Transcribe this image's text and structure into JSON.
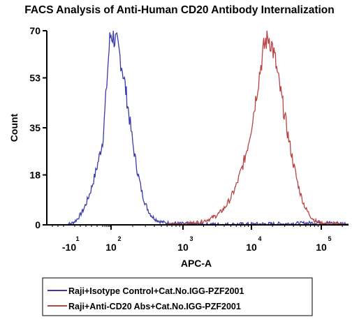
{
  "chart_data": {
    "type": "line",
    "title": "FACS Analysis of Anti-Human CD20 Antibody Internalization",
    "xlabel": "APC-A",
    "ylabel": "Count",
    "x_scale": "biexponential",
    "ylim": [
      0,
      70
    ],
    "y_ticks": [
      "0",
      "18",
      "35",
      "53",
      "70"
    ],
    "x_ticks": [
      {
        "base": "-10",
        "exp": "1",
        "value": -10
      },
      {
        "base": "10",
        "exp": "2",
        "value": 100
      },
      {
        "base": "10",
        "exp": "3",
        "value": 1000
      },
      {
        "base": "10",
        "exp": "4",
        "value": 10000
      },
      {
        "base": "10",
        "exp": "5",
        "value": 100000
      }
    ],
    "legend_position": "bottom",
    "series": [
      {
        "name": "Raji+Isotype Control+Cat.No.IGG-PZF2001",
        "color": "#3a3aa8",
        "x": [
          -18,
          -12,
          -5,
          0,
          5,
          10,
          15,
          20,
          25,
          30,
          35,
          40,
          45,
          50,
          55,
          60,
          65,
          70,
          75,
          80,
          85,
          90,
          95,
          100,
          105,
          110,
          115,
          120,
          130,
          140,
          150,
          160,
          170,
          180,
          190,
          200,
          215,
          230,
          250,
          270,
          300,
          340,
          380,
          430,
          480,
          550,
          650,
          800,
          1000,
          1300,
          2000,
          4000,
          10000,
          30000,
          100000,
          300000
        ],
        "y": [
          0,
          0.2,
          0.6,
          1.2,
          2.2,
          3.6,
          5.3,
          7.5,
          10.2,
          13.3,
          17,
          21,
          25.6,
          30.3,
          35.2,
          40.5,
          45.5,
          50.8,
          55.3,
          59.5,
          63.5,
          66.3,
          68.2,
          68.8,
          68.3,
          67.5,
          66.3,
          65,
          62,
          58,
          53.5,
          48.5,
          43.5,
          38.5,
          34,
          29.5,
          24.5,
          20,
          15.5,
          11.5,
          7.5,
          4.5,
          2.8,
          1.8,
          1.2,
          0.8,
          0.6,
          0.5,
          0.4,
          0.3,
          0.2,
          0.2,
          0.3,
          0.4,
          0.8,
          0.3
        ]
      },
      {
        "name": "Raji+Anti-CD20 Abs+Cat.No.IGG-PZF2001",
        "color": "#b84444",
        "x": [
          600,
          800,
          1000,
          1300,
          1700,
          2000,
          2500,
          3000,
          3500,
          4000,
          4500,
          5000,
          5500,
          6000,
          6500,
          7000,
          7500,
          8000,
          9000,
          10000,
          11000,
          12000,
          13000,
          14000,
          15000,
          16000,
          17000,
          18000,
          19000,
          20000,
          22000,
          24000,
          27000,
          30000,
          35000,
          40000,
          45000,
          50000,
          55000,
          60000,
          70000,
          80000,
          100000,
          150000,
          300000
        ],
        "y": [
          0,
          0.1,
          0.3,
          0.6,
          1,
          1.4,
          2.2,
          3.2,
          4.5,
          6,
          7.8,
          9.8,
          12,
          14.2,
          16.7,
          19.2,
          21.6,
          24,
          29.5,
          35.5,
          42,
          48.5,
          54.2,
          59.2,
          63.4,
          66.2,
          67.8,
          67.5,
          66,
          64,
          59,
          53,
          46,
          39,
          29.5,
          22,
          16,
          11.5,
          8.2,
          5.8,
          3.2,
          1.6,
          0.6,
          0.3,
          0
        ]
      }
    ]
  }
}
